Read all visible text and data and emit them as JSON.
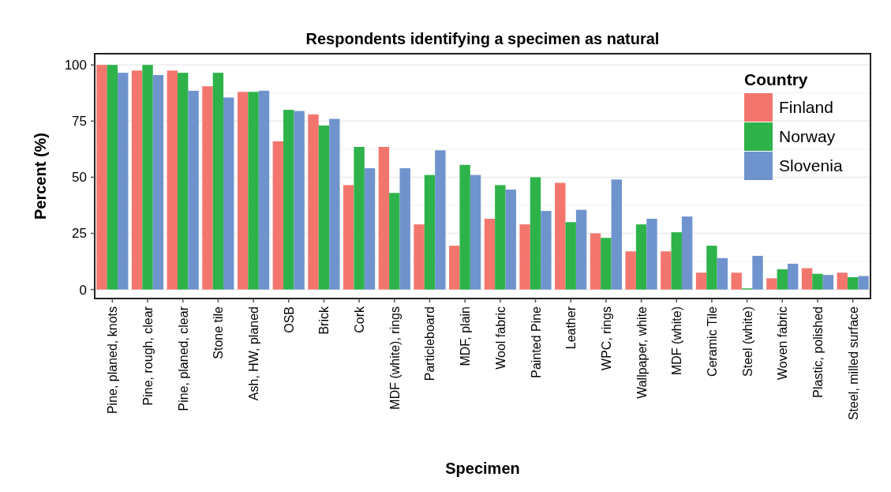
{
  "chart_data": {
    "type": "bar",
    "title": "Respondents identifying a specimen as natural",
    "xlabel": "Specimen",
    "ylabel": "Percent (%)",
    "legend_title": "Country",
    "legend": "top right",
    "grid": "y",
    "categories": [
      "Pine, planed, knots",
      "Pine, rough, clear",
      "Pine, planed, clear",
      "Stone tile",
      "Ash, HW, planed",
      "OSB",
      "Brick",
      "Cork",
      "MDF (white), rings",
      "Particleboard",
      "MDF, plain",
      "Wool fabric",
      "Painted Pine",
      "Leather",
      "WPC, rings",
      "Wallpaper, white",
      "MDF (white)",
      "Ceramic Tile",
      "Steel (white)",
      "Woven fabric",
      "Plastic, polished",
      "Steel, milled surface"
    ],
    "series": [
      {
        "name": "Finland",
        "color": "#f3766e",
        "values": [
          100,
          97.5,
          97.5,
          90.5,
          88,
          66,
          78,
          46.5,
          63.5,
          29,
          19.5,
          31.5,
          29,
          47.5,
          25,
          17,
          17,
          7.5,
          7.5,
          5,
          9.5,
          7.5
        ]
      },
      {
        "name": "Norway",
        "color": "#2db34a",
        "values": [
          100,
          100,
          96.5,
          96.5,
          88,
          80,
          73,
          63.5,
          43,
          51,
          55.5,
          46.5,
          50,
          30,
          23,
          29,
          25.5,
          19.5,
          0.5,
          9,
          7,
          5.5
        ]
      },
      {
        "name": "Slovenia",
        "color": "#6f94cd",
        "values": [
          96.5,
          95.5,
          88.5,
          85.5,
          88.5,
          79.5,
          76,
          54,
          54,
          62,
          51,
          44.5,
          35,
          35.5,
          49,
          31.5,
          32.5,
          14,
          15,
          11.5,
          6.5,
          6
        ]
      }
    ],
    "ylim": [
      -4,
      105
    ],
    "yticks": [
      0,
      25,
      50,
      75,
      100
    ]
  }
}
